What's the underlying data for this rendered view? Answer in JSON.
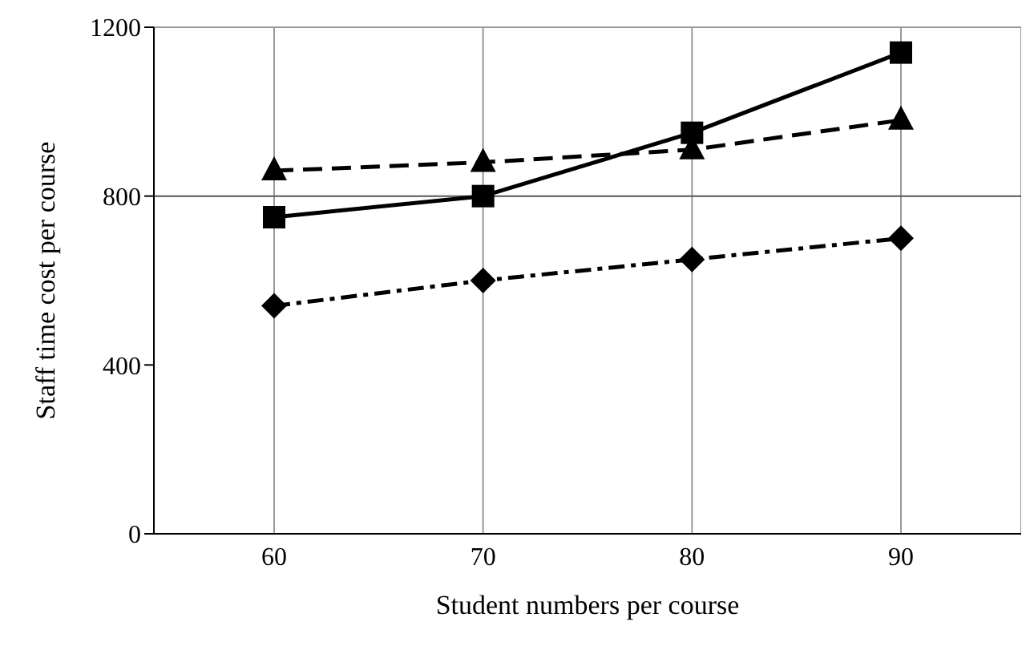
{
  "chart_data": {
    "type": "line",
    "xlabel": "Student numbers per course",
    "ylabel": "Staff time cost per course",
    "categories": [
      "60",
      "70",
      "80",
      "90"
    ],
    "series": [
      {
        "color": "#000000",
        "marker": "square",
        "line_style": "solid",
        "values": [
          750,
          800,
          950,
          1140
        ]
      },
      {
        "color": "#000000",
        "marker": "triangle",
        "line_style": "dashed",
        "values": [
          860,
          880,
          910,
          980
        ]
      },
      {
        "color": "#000000",
        "marker": "diamond",
        "line_style": "dashdot",
        "values": [
          540,
          600,
          650,
          700
        ]
      }
    ],
    "ylim": [
      0,
      1200
    ],
    "yticks": [
      0,
      400,
      800,
      1200
    ],
    "grid": "x",
    "ref_lines": [
      {
        "axis": "y",
        "value": 800,
        "color": "#555555"
      }
    ]
  }
}
